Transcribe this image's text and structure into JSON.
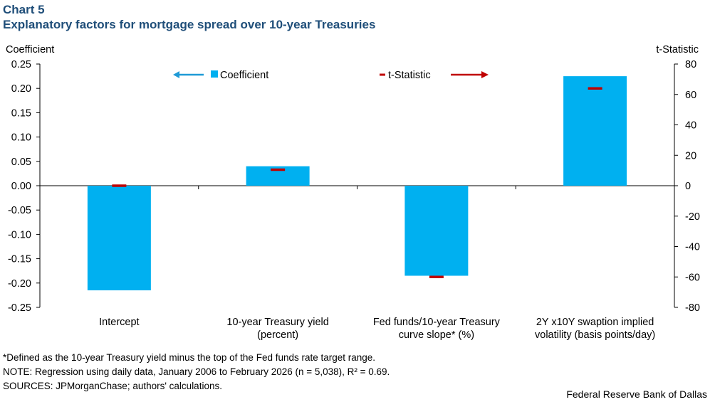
{
  "header": {
    "chart_number": "Chart 5",
    "title": "Explanatory factors for mortgage spread over 10-year Treasuries"
  },
  "colors": {
    "bar": "#00b0f0",
    "tstat_marker": "#c00000",
    "coef_arrow": "#1f9ad6",
    "title": "#1f4e79"
  },
  "chart_data": {
    "type": "bar",
    "categories": [
      [
        "Intercept"
      ],
      [
        "10-year Treasury yield",
        "(percent)"
      ],
      [
        "Fed funds/10-year Treasury",
        "curve slope* (%)"
      ],
      [
        "2Y x10Y swaption implied",
        "volatility (basis points/day)"
      ]
    ],
    "series": [
      {
        "name": "Coefficient",
        "axis": "left",
        "style": "bar",
        "values": [
          -0.215,
          0.04,
          -0.185,
          0.225
        ]
      },
      {
        "name": "t-Statistic",
        "axis": "right",
        "style": "marker",
        "values": [
          0,
          10.5,
          -60,
          64
        ]
      }
    ],
    "left_axis": {
      "label": "Coefficient",
      "ylim": [
        -0.25,
        0.25
      ],
      "ticks": [
        "0.25",
        "0.20",
        "0.15",
        "0.10",
        "0.05",
        "0.00",
        "-0.05",
        "-0.10",
        "-0.15",
        "-0.20",
        "-0.25"
      ]
    },
    "right_axis": {
      "label": "t-Statistic",
      "ylim": [
        -80,
        80
      ],
      "ticks": [
        "80",
        "60",
        "40",
        "20",
        "0",
        "-20",
        "-40",
        "-60",
        "-80"
      ]
    },
    "legend": {
      "placement": "top",
      "coefficient_label": "Coefficient",
      "tstat_label": "t-Statistic"
    },
    "grid": false
  },
  "footer": {
    "footnote": "*Defined as the 10-year Treasury yield minus the top of the Fed funds rate target range.",
    "note": "NOTE: Regression using daily data, January 2006 to February 2026 (n = 5,038), R² = 0.69.",
    "sources": "SOURCES: JPMorganChase; authors' calculations.",
    "credit": "Federal Reserve Bank of Dallas"
  }
}
